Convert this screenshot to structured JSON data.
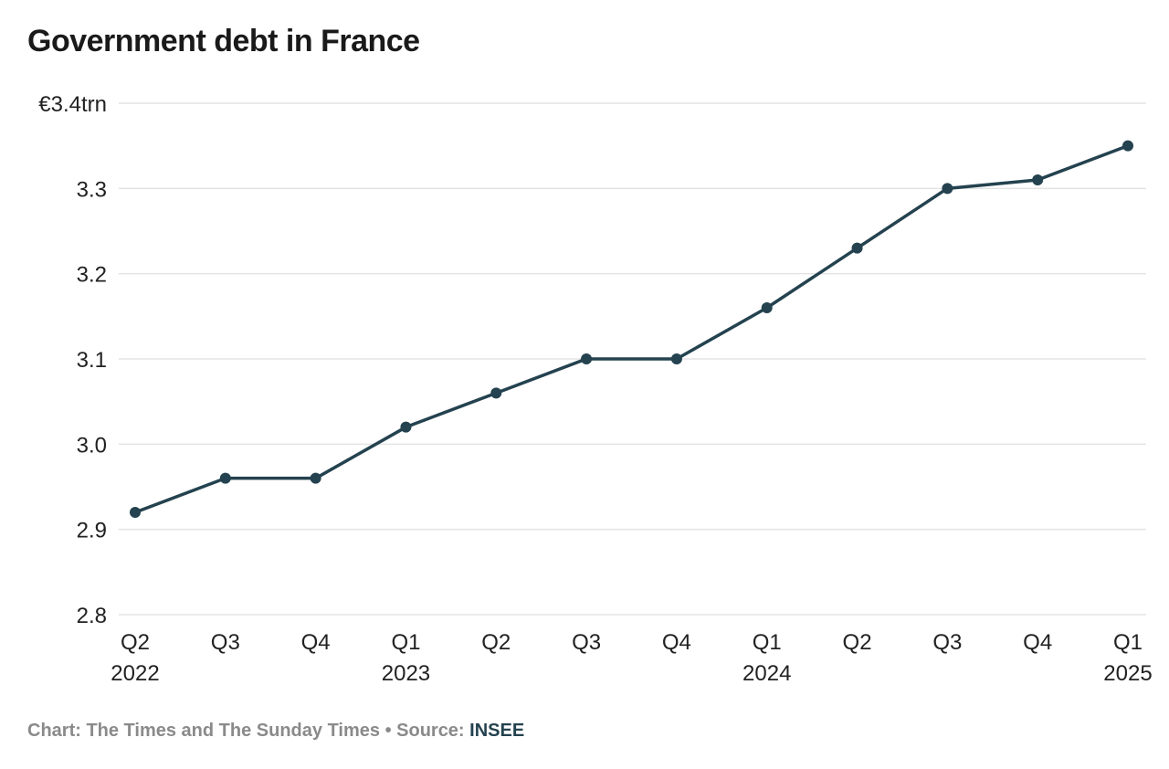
{
  "chart_data": {
    "type": "line",
    "title": "Government debt in France",
    "categories": [
      {
        "quarter": "Q2",
        "year": "2022"
      },
      {
        "quarter": "Q3",
        "year": ""
      },
      {
        "quarter": "Q4",
        "year": ""
      },
      {
        "quarter": "Q1",
        "year": "2023"
      },
      {
        "quarter": "Q2",
        "year": ""
      },
      {
        "quarter": "Q3",
        "year": ""
      },
      {
        "quarter": "Q4",
        "year": ""
      },
      {
        "quarter": "Q1",
        "year": "2024"
      },
      {
        "quarter": "Q2",
        "year": ""
      },
      {
        "quarter": "Q3",
        "year": ""
      },
      {
        "quarter": "Q4",
        "year": ""
      },
      {
        "quarter": "Q1",
        "year": "2025"
      }
    ],
    "values": [
      2.92,
      2.96,
      2.96,
      3.02,
      3.06,
      3.1,
      3.1,
      3.16,
      3.23,
      3.3,
      3.31,
      3.35
    ],
    "ylim": [
      2.8,
      3.4
    ],
    "yticks": [
      {
        "value": 2.8,
        "label": "2.8"
      },
      {
        "value": 2.9,
        "label": "2.9"
      },
      {
        "value": 3.0,
        "label": "3.0"
      },
      {
        "value": 3.1,
        "label": "3.1"
      },
      {
        "value": 3.2,
        "label": "3.2"
      },
      {
        "value": 3.3,
        "label": "3.3"
      },
      {
        "value": 3.4,
        "label": "€3.4trn"
      }
    ],
    "grid": true,
    "line_color": "#24424f",
    "grid_color": "#e3e3e3"
  },
  "footer": {
    "credit": "Chart: The Times and The Sunday Times • Source: ",
    "source": "INSEE"
  }
}
